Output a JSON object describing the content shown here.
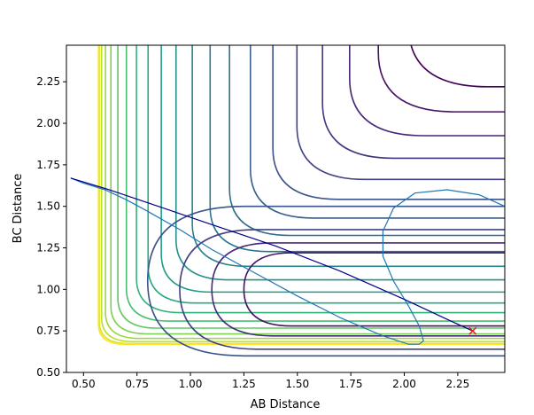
{
  "chart_data": {
    "type": "contour",
    "title": "",
    "xlabel": "AB Distance",
    "ylabel": "BC Distance",
    "xlim": [
      0.42,
      2.47
    ],
    "ylim": [
      0.5,
      2.47
    ],
    "xticks": [
      0.5,
      0.75,
      1.0,
      1.25,
      1.5,
      1.75,
      2.0,
      2.25
    ],
    "xtick_labels": [
      "0.50",
      "0.75",
      "1.00",
      "1.25",
      "1.50",
      "1.75",
      "2.00",
      "2.25"
    ],
    "yticks": [
      0.5,
      0.75,
      1.0,
      1.25,
      1.5,
      1.75,
      2.0,
      2.25
    ],
    "ytick_labels": [
      "0.50",
      "0.75",
      "1.00",
      "1.25",
      "1.50",
      "1.75",
      "2.00",
      "2.25"
    ],
    "grid": false,
    "colormap": "viridis",
    "contour_levels": 21,
    "trajectories": [
      {
        "color": "#1f77b4",
        "points": [
          [
            2.47,
            1.5
          ],
          [
            2.35,
            1.57
          ],
          [
            2.2,
            1.6
          ],
          [
            2.05,
            1.58
          ],
          [
            1.95,
            1.49
          ],
          [
            1.9,
            1.35
          ],
          [
            1.9,
            1.2
          ],
          [
            1.95,
            1.05
          ],
          [
            2.02,
            0.9
          ],
          [
            2.07,
            0.78
          ],
          [
            2.09,
            0.69
          ],
          [
            2.07,
            0.67
          ],
          [
            2.02,
            0.67
          ],
          [
            1.9,
            0.72
          ],
          [
            1.7,
            0.83
          ],
          [
            1.5,
            0.96
          ],
          [
            1.3,
            1.1
          ],
          [
            1.1,
            1.24
          ],
          [
            0.95,
            1.36
          ],
          [
            0.8,
            1.47
          ],
          [
            0.7,
            1.54
          ],
          [
            0.6,
            1.6
          ],
          [
            0.5,
            1.64
          ],
          [
            0.44,
            1.67
          ]
        ]
      },
      {
        "color": "#00008b",
        "points": [
          [
            0.44,
            1.67
          ],
          [
            0.62,
            1.6
          ],
          [
            0.85,
            1.5
          ],
          [
            1.1,
            1.39
          ],
          [
            1.4,
            1.26
          ],
          [
            1.7,
            1.11
          ],
          [
            2.0,
            0.94
          ],
          [
            2.2,
            0.82
          ],
          [
            2.32,
            0.75
          ]
        ]
      }
    ],
    "marker": {
      "x": 2.32,
      "y": 0.75,
      "symbol": "x",
      "color": "#d62728"
    }
  }
}
